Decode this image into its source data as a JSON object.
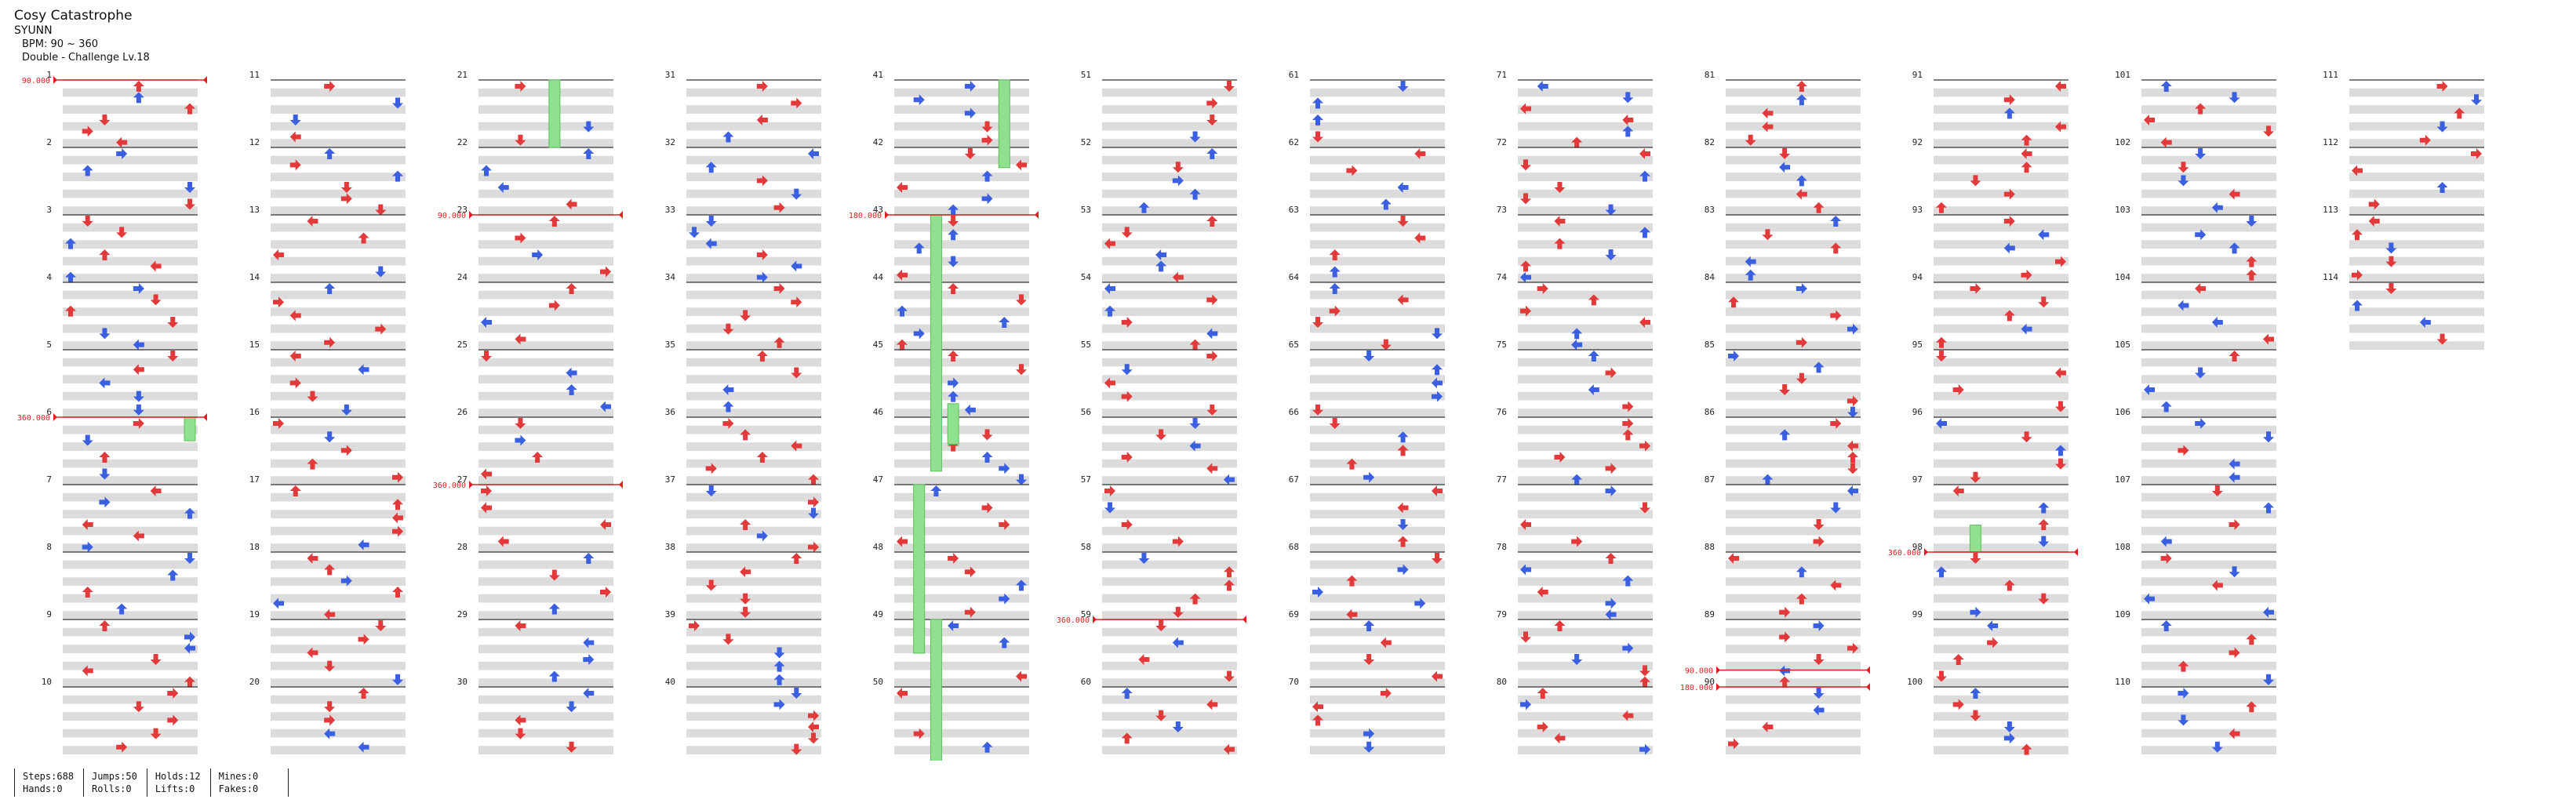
{
  "song": {
    "title": "Cosy Catastrophe",
    "artist": "SYUNN",
    "bpm": "BPM: 90 ~ 360",
    "difficulty": "Double - Challenge Lv.18"
  },
  "measures": [
    "1",
    "2",
    "3",
    "4",
    "5",
    "6",
    "7",
    "8",
    "9",
    "10",
    "11",
    "12",
    "13",
    "14",
    "15",
    "16",
    "17",
    "18",
    "19",
    "20",
    "21",
    "22",
    "23",
    "24",
    "25",
    "26",
    "27",
    "28",
    "29",
    "30",
    "31",
    "32",
    "33",
    "34",
    "35",
    "36",
    "37",
    "38",
    "39",
    "40",
    "41",
    "42",
    "43",
    "44",
    "45",
    "46",
    "47",
    "48",
    "49",
    "50",
    "51",
    "52",
    "53",
    "54",
    "55",
    "56",
    "57",
    "58",
    "59",
    "60",
    "61",
    "62",
    "63",
    "64",
    "65",
    "66",
    "67",
    "68",
    "69",
    "70",
    "71",
    "72",
    "73",
    "74",
    "75",
    "76",
    "77",
    "78",
    "79",
    "80",
    "81",
    "82",
    "83",
    "84",
    "85",
    "86",
    "87",
    "88",
    "89",
    "90",
    "91",
    "92",
    "93",
    "94",
    "95",
    "96",
    "97",
    "98",
    "99",
    "100",
    "101",
    "102",
    "103",
    "104",
    "105",
    "106",
    "107",
    "108",
    "109",
    "110",
    "111",
    "112",
    "113",
    "114"
  ],
  "bpm_changes": [
    {
      "label": "90.000",
      "column": 0,
      "measure_pos": 0.0
    },
    {
      "label": "360.000",
      "column": 0,
      "measure_pos": 5.0
    },
    {
      "label": "90.000",
      "column": 2,
      "measure_pos": 2.0
    },
    {
      "label": "360.000",
      "column": 2,
      "measure_pos": 6.0
    },
    {
      "label": "180.000",
      "column": 4,
      "measure_pos": 2.0
    },
    {
      "label": "360.000",
      "column": 5,
      "measure_pos": 8.0
    },
    {
      "label": "90.000",
      "column": 8,
      "measure_pos": 8.75
    },
    {
      "label": "180.000",
      "column": 8,
      "measure_pos": 9.0
    },
    {
      "label": "360.000",
      "column": 9,
      "measure_pos": 7.0
    }
  ],
  "stats": {
    "col1": [
      "Steps:688",
      "Hands:0"
    ],
    "col2": [
      "Jumps:50",
      "Rolls:0"
    ],
    "col3": [
      "Holds:12",
      "Lifts:0"
    ],
    "col4": [
      "Mines:0",
      "Fakes:0"
    ]
  },
  "colors": {
    "red": "#e23a3a",
    "blue": "#3a5fe0",
    "yellow": "#f2d23a",
    "orange": "#f0913a",
    "hold": "#8fe08f",
    "band": "#dcdcdc",
    "bpm_line": "#e02020"
  }
}
